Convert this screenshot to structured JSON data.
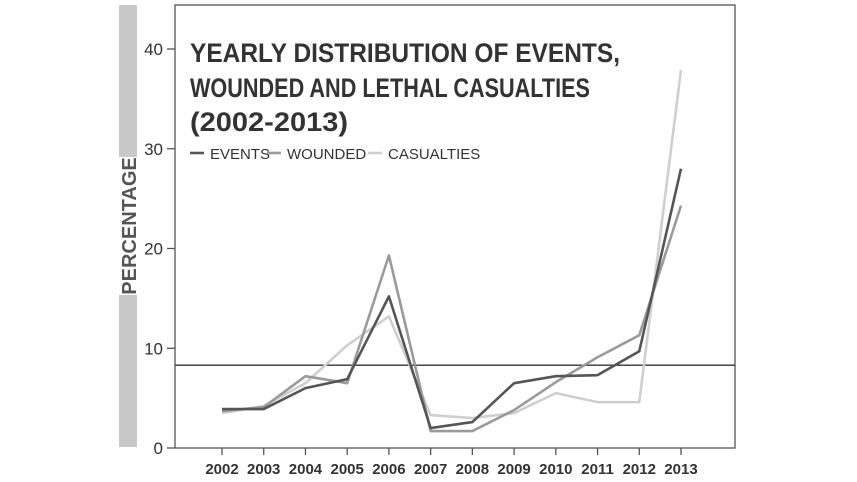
{
  "chart_data": {
    "type": "line",
    "title_lines": [
      "YEARLY  DISTRIBUTION OF EVENTS,",
      "WOUNDED AND LETHAL CASUALTIES",
      "(2002-2013)"
    ],
    "xlabel": "",
    "ylabel": "PERCENTAGE",
    "x": [
      "2002",
      "2003",
      "2004",
      "2005",
      "2006",
      "2007",
      "2008",
      "2009",
      "2010",
      "2011",
      "2012",
      "2013"
    ],
    "ylim": [
      0,
      40
    ],
    "yticks": [
      0,
      10,
      20,
      30,
      40
    ],
    "grid": false,
    "legend_position": "top-left",
    "reference_line": 8.3,
    "series": [
      {
        "name": "EVENTS",
        "color": "#555555",
        "values": [
          3.9,
          3.9,
          6.0,
          6.9,
          15.2,
          2.0,
          2.6,
          6.5,
          7.2,
          7.3,
          9.7,
          28.0
        ]
      },
      {
        "name": "WOUNDED",
        "color": "#9a9a9a",
        "values": [
          3.7,
          4.1,
          7.2,
          6.5,
          19.3,
          1.7,
          1.7,
          3.8,
          6.6,
          9.1,
          11.3,
          24.3
        ]
      },
      {
        "name": "CASUALTIES",
        "color": "#cfcfcf",
        "values": [
          3.5,
          4.2,
          6.5,
          10.3,
          13.2,
          3.3,
          3.0,
          3.5,
          5.5,
          4.6,
          4.6,
          37.9
        ]
      }
    ]
  }
}
